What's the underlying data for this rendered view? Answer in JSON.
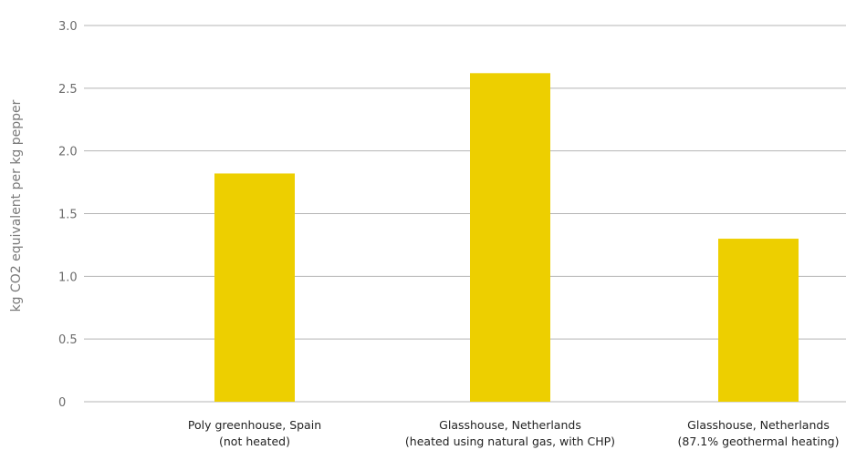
{
  "chart_data": {
    "type": "bar",
    "categories": [
      [
        "Poly greenhouse, Spain",
        "(not heated)"
      ],
      [
        "Glasshouse, Netherlands",
        "(heated using natural gas, with CHP)"
      ],
      [
        "Glasshouse, Netherlands",
        "(87.1% geothermal heating)"
      ]
    ],
    "values": [
      1.82,
      2.62,
      1.3
    ],
    "ylabel": "kg CO2 equivalent per kg pepper",
    "ylim": [
      0,
      3.0
    ],
    "yticks": [
      0,
      0.5,
      1.0,
      1.5,
      2.0,
      2.5,
      3.0
    ],
    "ytick_labels": [
      "0",
      "0.5",
      "1.0",
      "1.5",
      "2.0",
      "2.5",
      "3.0"
    ],
    "grid": true,
    "legend": "none",
    "bar_color": "#EDCF00"
  }
}
